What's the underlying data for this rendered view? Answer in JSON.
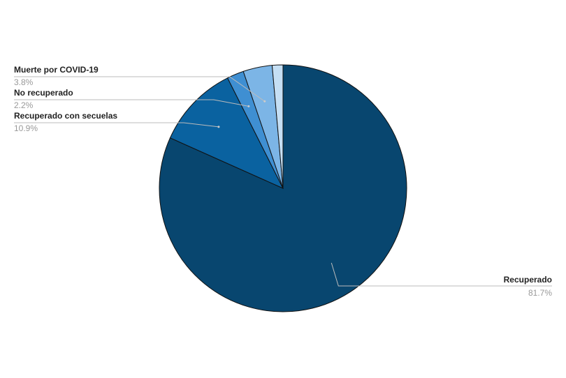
{
  "chart_data": {
    "type": "pie",
    "categories": [
      "Recuperado",
      "Recuperado con secuelas",
      "No recuperado",
      "Muerte por COVID-19",
      null
    ],
    "values": [
      81.7,
      10.9,
      2.2,
      3.8,
      1.4
    ],
    "value_labels": [
      "81.7%",
      "10.9%",
      "2.2%",
      "3.8%",
      null
    ],
    "colors": [
      "#08466f",
      "#0a62a0",
      "#3f8fd2",
      "#7cb5e6",
      "#c5dff4"
    ]
  }
}
